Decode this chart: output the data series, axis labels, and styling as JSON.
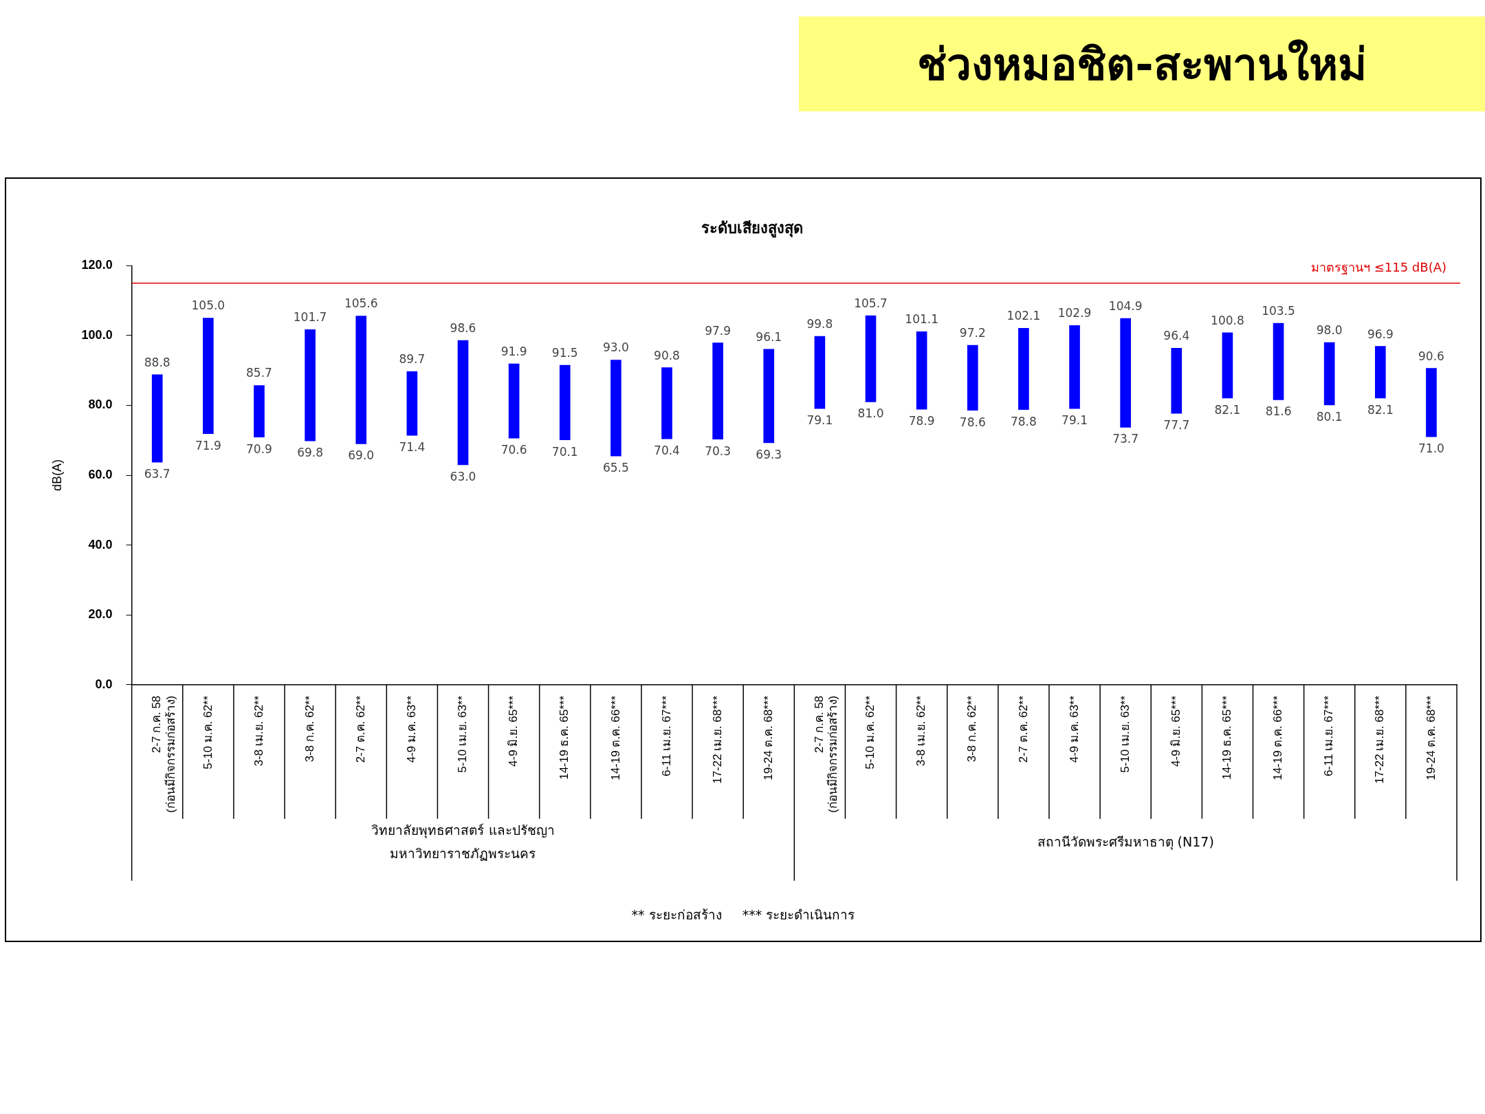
{
  "chart_data": {
    "type": "bar",
    "title": "ช่วงหมอชิต-สะพานใหม่",
    "subtitle": "ระดับเสียงสูงสุด",
    "ylabel": "dB(A)",
    "categories": [
      "2-7 ก.ค. 58\n(ก่อนมีกิจกรรมก่อสร้าง)",
      "5-10 ม.ค. 62**",
      "3-8 เม.ย. 62**",
      "3-8 ก.ค. 62**",
      "2-7 ต.ค. 62**",
      "4-9 ม.ค. 63**",
      "5-10 เม.ย. 63**",
      "4-9 มิ.ย. 65***",
      "14-19 ธ.ค. 65***",
      "14-19 ต.ค. 66***",
      "6-11 เม.ย. 67***",
      "17-22 เม.ย. 68***",
      "19-24 ต.ค. 68***",
      "2-7 ก.ค. 58\n(ก่อนมีกิจกรรมก่อสร้าง)",
      "5-10 ม.ค. 62**",
      "3-8 เม.ย. 62**",
      "3-8 ก.ค. 62**",
      "2-7 ต.ค. 62**",
      "4-9 ม.ค. 63**",
      "5-10 เม.ย. 63**",
      "4-9 มิ.ย. 65***",
      "14-19 ธ.ค. 65***",
      "14-19 ต.ค. 66***",
      "6-11 เม.ย. 67***",
      "17-22 เม.ย. 68***",
      "19-24 ต.ค. 68***"
    ],
    "base": [
      63.7,
      71.9,
      70.9,
      69.8,
      69.0,
      71.4,
      63.0,
      70.6,
      70.1,
      65.5,
      70.4,
      70.3,
      69.3,
      79.1,
      81.0,
      78.9,
      78.6,
      78.8,
      79.1,
      73.7,
      77.7,
      82.1,
      81.6,
      80.1,
      82.1,
      71.0
    ],
    "values": [
      25.1,
      33.1,
      14.8,
      31.9,
      36.6,
      18.3,
      35.6,
      21.3,
      21.4,
      27.5,
      20.4,
      27.6,
      26.8,
      20.7,
      24.7,
      22.2,
      18.6,
      23.3,
      23.8,
      31.2,
      18.7,
      18.7,
      21.9,
      17.9,
      14.8,
      19.6
    ],
    "value_labels": [
      "88.8",
      "105.0",
      "85.7",
      "101.7",
      "105.6",
      "89.7",
      "98.6",
      "91.9",
      "91.5",
      "93.0",
      "90.8",
      "97.9",
      "96.1",
      "99.8",
      "105.7",
      "101.1",
      "97.2",
      "102.1",
      "102.9",
      "104.9",
      "96.4",
      "100.8",
      "103.5",
      "98.0",
      "96.9",
      "90.6"
    ],
    "color": "#0000ff",
    "ylim": [
      0,
      120
    ],
    "yticks": [
      {
        "value": 0,
        "label": "0.0"
      },
      {
        "value": 20,
        "label": "20.0"
      },
      {
        "value": 40,
        "label": "40.0"
      },
      {
        "value": 60,
        "label": "60.0"
      },
      {
        "value": 80,
        "label": "80.0"
      },
      {
        "value": 100,
        "label": "100.0"
      },
      {
        "value": 120,
        "label": "120.0"
      }
    ],
    "ref_lines": [
      {
        "axis": "y",
        "value": 115,
        "label": "มาตรฐานฯ ≤115 dB(A)",
        "color": "#e00000"
      }
    ],
    "annotations": [
      "วิทยาลัยพุทธศาสตร์ และปรัชญา\nมหาวิทยาราชภัฏพระนคร",
      "สถานีวัดพระศรีมหาธาตุ (N17)",
      "** ระยะก่อสร้าง     *** ระยะดำเนินการ",
      "63.7",
      "71.9",
      "70.9",
      "69.8",
      "69.0",
      "71.4",
      "63.0",
      "70.6",
      "70.1",
      "65.5",
      "70.4",
      "70.3",
      "69.3",
      "79.1",
      "81.0",
      "78.9",
      "78.6",
      "78.8",
      "79.1",
      "73.7",
      "77.7",
      "82.1",
      "81.6",
      "80.1",
      "82.1",
      "71.0"
    ],
    "grid": false,
    "legend": false
  }
}
